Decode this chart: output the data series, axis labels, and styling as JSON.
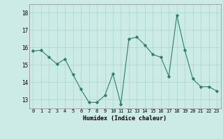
{
  "x": [
    0,
    1,
    2,
    3,
    4,
    5,
    6,
    7,
    8,
    9,
    10,
    11,
    12,
    13,
    14,
    15,
    16,
    17,
    18,
    19,
    20,
    21,
    22,
    23
  ],
  "y": [
    15.8,
    15.85,
    15.45,
    15.05,
    15.35,
    14.45,
    13.6,
    12.85,
    12.85,
    13.25,
    14.5,
    12.75,
    16.5,
    16.6,
    16.15,
    15.6,
    15.45,
    14.35,
    17.85,
    15.85,
    14.2,
    13.75,
    13.75,
    13.5
  ],
  "line_color": "#2e7d6e",
  "marker": "D",
  "marker_size": 1.8,
  "linewidth": 0.8,
  "bg_color": "#cceae6",
  "grid_color": "#aad4cf",
  "xlabel": "Humidex (Indice chaleur)",
  "ylim": [
    12.5,
    18.5
  ],
  "xlim": [
    -0.5,
    23.5
  ],
  "yticks": [
    13,
    14,
    15,
    16,
    17,
    18
  ],
  "xticks": [
    0,
    1,
    2,
    3,
    4,
    5,
    6,
    7,
    8,
    9,
    10,
    11,
    12,
    13,
    14,
    15,
    16,
    17,
    18,
    19,
    20,
    21,
    22,
    23
  ],
  "xtick_labels": [
    "0",
    "1",
    "2",
    "3",
    "4",
    "5",
    "6",
    "7",
    "8",
    "9",
    "10",
    "11",
    "12",
    "13",
    "14",
    "15",
    "16",
    "17",
    "18",
    "19",
    "20",
    "21",
    "22",
    "23"
  ]
}
